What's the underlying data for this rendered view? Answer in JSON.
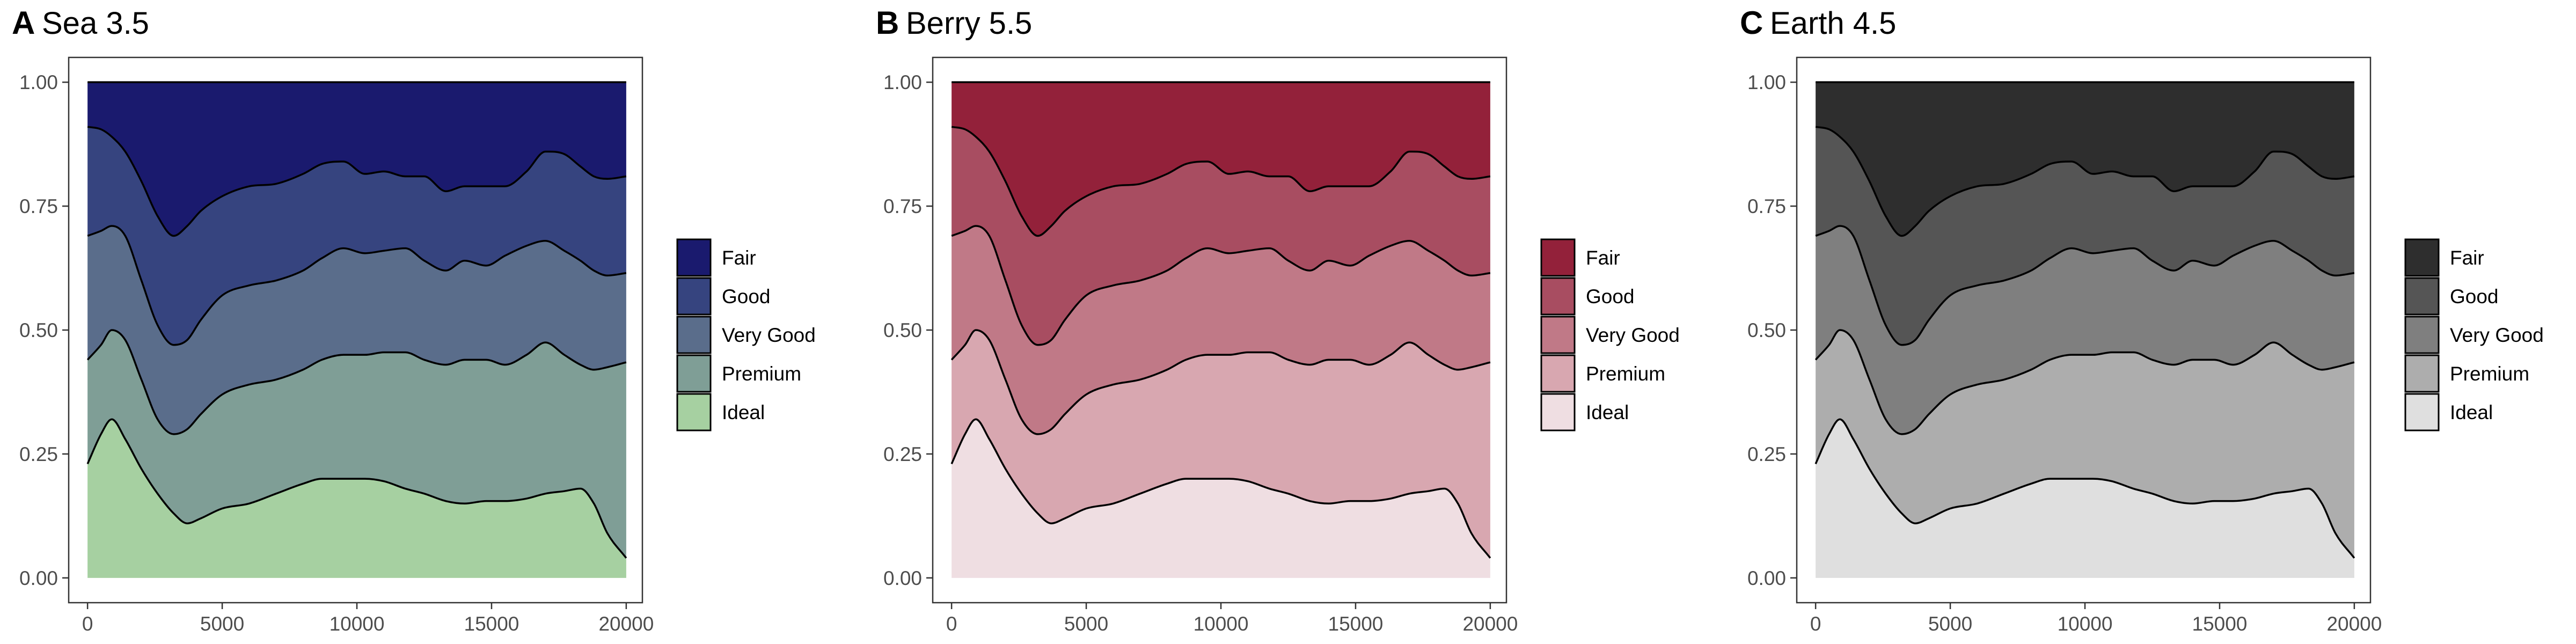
{
  "panels": [
    {
      "letter": "A",
      "title": "Sea 3.5",
      "colors": [
        "#1a1a6e",
        "#36447f",
        "#5a6d8b",
        "#7f9e96",
        "#a6d0a1"
      ]
    },
    {
      "letter": "B",
      "title": "Berry 5.5",
      "colors": [
        "#93213a",
        "#a84d61",
        "#c07987",
        "#d8a7b0",
        "#efdee2"
      ]
    },
    {
      "letter": "C",
      "title": "Earth 4.5",
      "colors": [
        "#2e2e2e",
        "#555555",
        "#7f7f7f",
        "#adadad",
        "#dfdfdf"
      ]
    }
  ],
  "chart_data": {
    "type": "area",
    "stacking": "fill",
    "x_ticks": [
      0,
      5000,
      10000,
      15000,
      20000
    ],
    "y_ticks": [
      0.0,
      0.25,
      0.5,
      0.75,
      1.0
    ],
    "y_tick_labels": [
      "0.00",
      "0.25",
      "0.50",
      "0.75",
      "1.00"
    ],
    "xlim": [
      -700,
      20600
    ],
    "ylim": [
      -0.05,
      1.05
    ],
    "legend_position": "right",
    "legend_labels": [
      "Fair",
      "Good",
      "Very Good",
      "Premium",
      "Ideal"
    ],
    "x": [
      0,
      500,
      900,
      1400,
      2000,
      2600,
      3200,
      3700,
      4200,
      5000,
      6000,
      7000,
      8000,
      8700,
      9500,
      10300,
      11000,
      11800,
      12500,
      13300,
      14000,
      14800,
      15500,
      16300,
      17000,
      17700,
      18300,
      18800,
      19300,
      20000
    ],
    "series": [
      {
        "name": "Fair",
        "y_upper": [
          1.0,
          1.0,
          1.0,
          1.0,
          1.0,
          1.0,
          1.0,
          1.0,
          1.0,
          1.0,
          1.0,
          1.0,
          1.0,
          1.0,
          1.0,
          1.0,
          1.0,
          1.0,
          1.0,
          1.0,
          1.0,
          1.0,
          1.0,
          1.0,
          1.0,
          1.0,
          1.0,
          1.0,
          1.0,
          1.0
        ]
      },
      {
        "name": "Good",
        "y_upper": [
          0.91,
          0.905,
          0.89,
          0.86,
          0.8,
          0.73,
          0.69,
          0.71,
          0.74,
          0.77,
          0.79,
          0.795,
          0.815,
          0.835,
          0.84,
          0.815,
          0.82,
          0.81,
          0.81,
          0.78,
          0.79,
          0.79,
          0.79,
          0.82,
          0.86,
          0.855,
          0.83,
          0.81,
          0.805,
          0.81
        ]
      },
      {
        "name": "Very Good",
        "y_upper": [
          0.69,
          0.7,
          0.71,
          0.69,
          0.6,
          0.51,
          0.47,
          0.48,
          0.52,
          0.57,
          0.59,
          0.6,
          0.62,
          0.645,
          0.665,
          0.655,
          0.66,
          0.665,
          0.64,
          0.62,
          0.64,
          0.63,
          0.65,
          0.67,
          0.68,
          0.66,
          0.64,
          0.62,
          0.61,
          0.615
        ]
      },
      {
        "name": "Premium",
        "y_upper": [
          0.44,
          0.47,
          0.5,
          0.48,
          0.4,
          0.32,
          0.29,
          0.3,
          0.33,
          0.37,
          0.39,
          0.4,
          0.42,
          0.44,
          0.45,
          0.45,
          0.455,
          0.455,
          0.44,
          0.43,
          0.44,
          0.44,
          0.43,
          0.45,
          0.475,
          0.45,
          0.43,
          0.42,
          0.425,
          0.435
        ]
      },
      {
        "name": "Ideal",
        "y_upper": [
          0.23,
          0.29,
          0.32,
          0.28,
          0.22,
          0.17,
          0.13,
          0.11,
          0.12,
          0.14,
          0.15,
          0.17,
          0.19,
          0.2,
          0.2,
          0.2,
          0.195,
          0.18,
          0.17,
          0.155,
          0.15,
          0.155,
          0.155,
          0.16,
          0.17,
          0.175,
          0.18,
          0.15,
          0.09,
          0.04
        ]
      }
    ]
  }
}
